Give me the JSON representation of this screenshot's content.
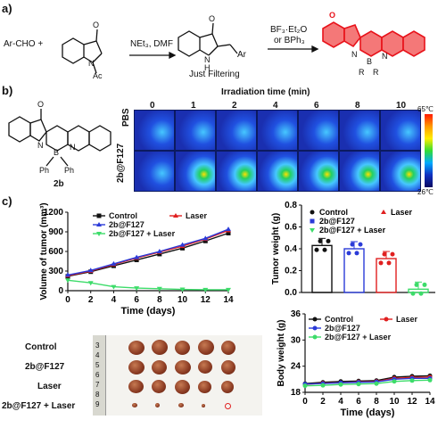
{
  "panel_a": {
    "label": "a)",
    "reactant": "Ar-CHO +",
    "n_acetyl": "N",
    "acetyl": "Ac",
    "ketone_o": "O",
    "cond1": "NEt₃, DMF",
    "nh": "N",
    "h": "H",
    "ar": "Ar",
    "note": "Just Filtering",
    "cond2_line1": "BF₃·Et₂O",
    "cond2_line2": "or BPh₃",
    "prod_o": "O",
    "prod_n1": "N",
    "prod_b": "B",
    "prod_n2": "N",
    "prod_r1": "R",
    "prod_r2": "R",
    "colors": {
      "product": "#e8121a"
    }
  },
  "panel_b": {
    "label": "b)",
    "compound": "2b",
    "o": "O",
    "n1": "N",
    "b": "B",
    "n2": "N",
    "ph1": "Ph",
    "ph2": "Ph",
    "irradiation_title": "Irradiation time (min)",
    "times": [
      "0",
      "1",
      "2",
      "4",
      "6",
      "8",
      "10"
    ],
    "rows": [
      "PBS",
      "2b@F127"
    ],
    "scale_max": "65℃",
    "scale_min": "26℃"
  },
  "panel_c": {
    "label": "c)",
    "photo_rows": [
      "Control",
      "2b@F127",
      "Laser",
      "2b@F127 + Laser"
    ],
    "ruler_digits": [
      "3",
      "4",
      "5",
      "6",
      "7",
      "8",
      "9"
    ]
  },
  "chart_data": [
    {
      "type": "line",
      "name": "tumor_volume",
      "ylabel": "Volume of tumor (mm³)",
      "xlabel": "Time (days)",
      "x": [
        0,
        2,
        4,
        6,
        8,
        10,
        12,
        14
      ],
      "ylim": [
        0,
        1200
      ],
      "yticks": [
        0,
        300,
        600,
        900,
        1200
      ],
      "series": [
        {
          "name": "Control",
          "color": "#111111",
          "marker": "square",
          "values": [
            220,
            290,
            380,
            470,
            560,
            650,
            760,
            880
          ]
        },
        {
          "name": "Laser",
          "color": "#e02020",
          "marker": "triangle",
          "values": [
            230,
            300,
            400,
            500,
            590,
            680,
            790,
            920
          ]
        },
        {
          "name": "2b@F127",
          "color": "#2b3bd8",
          "marker": "triangle",
          "values": [
            240,
            310,
            410,
            510,
            600,
            700,
            800,
            940
          ]
        },
        {
          "name": "2b@F127 + Laser",
          "color": "#3ddc6a",
          "marker": "triangle-down",
          "values": [
            160,
            120,
            60,
            40,
            30,
            20,
            15,
            15
          ]
        }
      ]
    },
    {
      "type": "bar",
      "name": "tumor_weight",
      "ylabel": "Tumor weight (g)",
      "categories": [
        "Control",
        "2b@F127",
        "Laser",
        "2b@F127 + Laser"
      ],
      "values": [
        0.43,
        0.4,
        0.31,
        0.03
      ],
      "colors": [
        "#111111",
        "#2b3bd8",
        "#e02020",
        "#3ddc6a"
      ],
      "ylim": [
        0.0,
        0.8
      ],
      "yticks": [
        "0.0",
        "0.2",
        "0.4",
        "0.6",
        "0.8"
      ],
      "legend": [
        "Control",
        "Laser",
        "2b@F127",
        "2b@F127 + Laser"
      ]
    },
    {
      "type": "line",
      "name": "body_weight",
      "ylabel": "Body weight (g)",
      "xlabel": "Time (days)",
      "x": [
        0,
        2,
        4,
        6,
        8,
        10,
        12,
        14
      ],
      "ylim": [
        18,
        36
      ],
      "yticks": [
        18,
        24,
        30,
        36
      ],
      "series": [
        {
          "name": "Control",
          "color": "#111111",
          "values": [
            20,
            20.3,
            20.5,
            20.6,
            20.7,
            21.5,
            21.7,
            21.8
          ]
        },
        {
          "name": "Laser",
          "color": "#e02020",
          "values": [
            19.8,
            20.1,
            20.2,
            20.4,
            20.5,
            21.2,
            21.4,
            21.5
          ]
        },
        {
          "name": "2b@F127",
          "color": "#2b3bd8",
          "values": [
            19.9,
            20,
            20.2,
            20.3,
            20.4,
            21,
            21.2,
            21.2
          ]
        },
        {
          "name": "2b@F127 + Laser",
          "color": "#3ddc6a",
          "values": [
            19.5,
            19.6,
            19.8,
            19.9,
            20,
            20.5,
            20.7,
            20.8
          ]
        }
      ]
    }
  ]
}
